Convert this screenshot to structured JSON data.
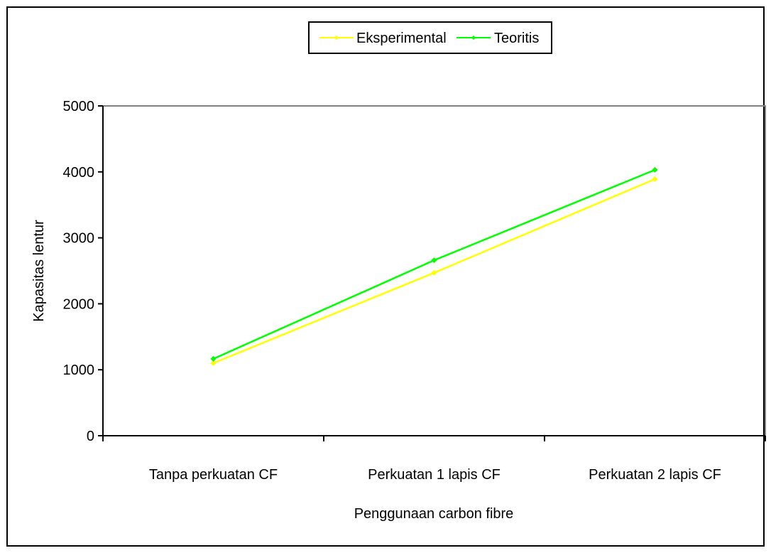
{
  "chart_data": {
    "type": "line",
    "xlabel": "Penggunaan carbon fibre",
    "ylabel": "Kapasitas lentur",
    "categories": [
      "Tanpa perkuatan CF",
      "Perkuatan 1 lapis CF",
      "Perkuatan 2 lapis CF"
    ],
    "ylim": [
      0,
      5000
    ],
    "yticks": [
      0,
      1000,
      2000,
      3000,
      4000,
      5000
    ],
    "grid": false,
    "legend_position": "top-center",
    "series": [
      {
        "name": "Eksperimental",
        "color": "#ffff00",
        "values": [
          1100,
          2470,
          3890
        ]
      },
      {
        "name": "Teoritis",
        "color": "#00ff00",
        "values": [
          1165,
          2660,
          4030
        ]
      }
    ]
  }
}
